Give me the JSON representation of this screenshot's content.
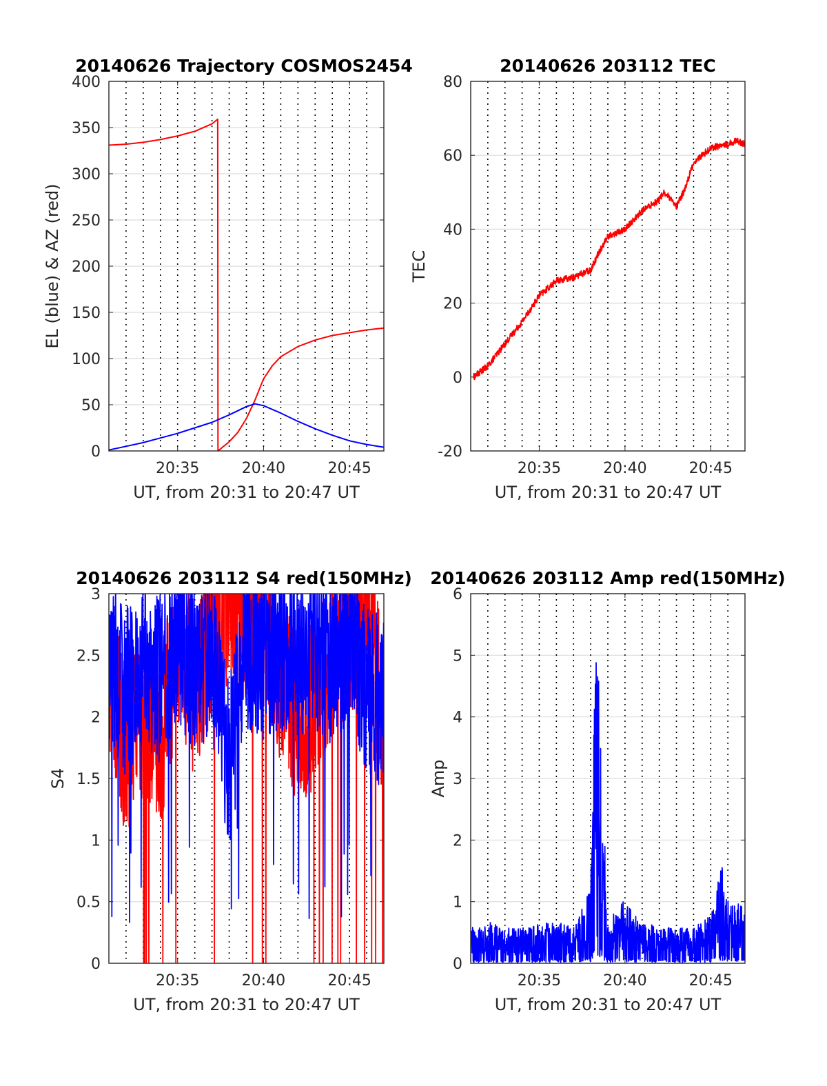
{
  "colors": {
    "red": "#ff0000",
    "blue": "#0000ff",
    "axis": "#262626",
    "grid": "#dcdcdc",
    "time_grid": "#000000"
  },
  "chart_data": [
    {
      "type": "line",
      "title": "20140626 Trajectory COSMOS2454",
      "xlabel": "UT, from 20:31 to 20:47 UT",
      "ylabel": "EL (blue) & AZ (red)",
      "xlim": [
        20.5167,
        20.7833
      ],
      "ylim": [
        0,
        400
      ],
      "xtick_labels": [
        "20:35",
        "20:40",
        "20:45"
      ],
      "ytick_labels": [
        "0",
        "50",
        "100",
        "150",
        "200",
        "250",
        "300",
        "350",
        "400"
      ],
      "grid": true,
      "series": [
        {
          "name": "AZ (red)",
          "color": "red",
          "x": [
            "20:31",
            "20:32",
            "20:33",
            "20:34",
            "20:35",
            "20:36",
            "20:37",
            "20:37:20",
            "20:37:21",
            "20:38",
            "20:38:30",
            "20:39",
            "20:39:30",
            "20:40",
            "20:40:30",
            "20:41",
            "20:42",
            "20:43",
            "20:44",
            "20:45",
            "20:46",
            "20:47"
          ],
          "y": [
            331,
            332,
            334,
            337,
            341,
            346,
            354,
            359,
            0,
            10,
            20,
            35,
            55,
            78,
            92,
            102,
            113,
            120,
            125,
            128,
            131,
            133
          ]
        },
        {
          "name": "EL (blue)",
          "color": "blue",
          "x": [
            "20:31",
            "20:32",
            "20:33",
            "20:34",
            "20:35",
            "20:36",
            "20:37",
            "20:38",
            "20:39",
            "20:39:30",
            "20:40",
            "20:41",
            "20:42",
            "20:43",
            "20:44",
            "20:45",
            "20:46",
            "20:47"
          ],
          "y": [
            1,
            5,
            9,
            14,
            19,
            25,
            31,
            39,
            48,
            51,
            49,
            41,
            32,
            24,
            17,
            11,
            7,
            4
          ]
        }
      ]
    },
    {
      "type": "line",
      "title": "20140626 203112 TEC",
      "xlabel": "UT, from 20:31 to 20:47 UT",
      "ylabel": "TEC",
      "xlim": [
        20.5167,
        20.7833
      ],
      "ylim": [
        -20,
        80
      ],
      "xtick_labels": [
        "20:35",
        "20:40",
        "20:45"
      ],
      "ytick_labels": [
        "-20",
        "0",
        "20",
        "40",
        "60",
        "80"
      ],
      "grid": true,
      "series": [
        {
          "color": "red",
          "x": [
            "20:31:10",
            "20:32",
            "20:33",
            "20:34",
            "20:35",
            "20:35:30",
            "20:36",
            "20:37",
            "20:38",
            "20:38:30",
            "20:39",
            "20:40",
            "20:41",
            "20:42",
            "20:42:15",
            "20:42:30",
            "20:43",
            "20:43:30",
            "20:44",
            "20:45",
            "20:46",
            "20:46:30",
            "20:47"
          ],
          "y": [
            0,
            3,
            9,
            15,
            22,
            24,
            26,
            27,
            29,
            34,
            38,
            40,
            45,
            48,
            50,
            49,
            46,
            51,
            58,
            62,
            63,
            64,
            63
          ]
        }
      ]
    },
    {
      "type": "line",
      "title": "20140626 203112 S4 red(150MHz)",
      "xlabel": "UT, from 20:31 to 20:47 UT",
      "ylabel": "S4",
      "xlim": [
        20.5167,
        20.7833
      ],
      "ylim": [
        0,
        3
      ],
      "xtick_labels": [
        "20:35",
        "20:40",
        "20:45"
      ],
      "ytick_labels": [
        "0",
        "0.5",
        "1",
        "1.5",
        "2",
        "2.5",
        "3"
      ],
      "grid": true,
      "series": [
        {
          "color": "red",
          "description_values": "noisy series mostly between 1.5 and 3, with dropouts to 0",
          "x": [
            "20:31",
            "20:32",
            "20:33",
            "20:34",
            "20:35",
            "20:36",
            "20:37",
            "20:38",
            "20:39",
            "20:40",
            "20:41",
            "20:42",
            "20:43",
            "20:44",
            "20:45",
            "20:46",
            "20:47"
          ],
          "y": [
            2.4,
            1.7,
            2.0,
            1.8,
            2.6,
            2.2,
            2.7,
            3.0,
            2.8,
            2.9,
            2.3,
            2.0,
            2.1,
            2.6,
            2.7,
            2.9,
            2.0
          ]
        },
        {
          "color": "blue",
          "x": [
            "20:31",
            "20:32",
            "20:33",
            "20:34",
            "20:35",
            "20:36",
            "20:37",
            "20:38",
            "20:39",
            "20:40",
            "20:41",
            "20:42",
            "20:43",
            "20:44",
            "20:45",
            "20:46",
            "20:47"
          ],
          "y": [
            2.5,
            2.2,
            2.4,
            2.3,
            2.6,
            2.4,
            2.5,
            1.6,
            2.6,
            2.5,
            2.6,
            2.5,
            2.6,
            2.4,
            2.7,
            2.2,
            2.1
          ]
        }
      ]
    },
    {
      "type": "line",
      "title": "20140626 203112 Amp red(150MHz)",
      "xlabel": "UT, from 20:31 to 20:47 UT",
      "ylabel": "Amp",
      "xlim": [
        20.5167,
        20.7833
      ],
      "ylim": [
        0,
        6
      ],
      "xtick_labels": [
        "20:35",
        "20:40",
        "20:45"
      ],
      "ytick_labels": [
        "0",
        "1",
        "2",
        "3",
        "4",
        "5",
        "6"
      ],
      "grid": true,
      "series": [
        {
          "color": "blue",
          "x": [
            "20:31",
            "20:32",
            "20:33",
            "20:34",
            "20:35",
            "20:36",
            "20:37",
            "20:38",
            "20:38:20",
            "20:38:30",
            "20:39",
            "20:40",
            "20:41",
            "20:42",
            "20:43",
            "20:44",
            "20:45",
            "20:45:40",
            "20:46",
            "20:47"
          ],
          "y": [
            0.5,
            0.6,
            0.5,
            0.5,
            0.55,
            0.6,
            0.5,
            1.1,
            5.05,
            3.9,
            0.6,
            0.9,
            0.6,
            0.5,
            0.5,
            0.5,
            0.7,
            1.4,
            0.9,
            0.8
          ]
        }
      ]
    }
  ]
}
